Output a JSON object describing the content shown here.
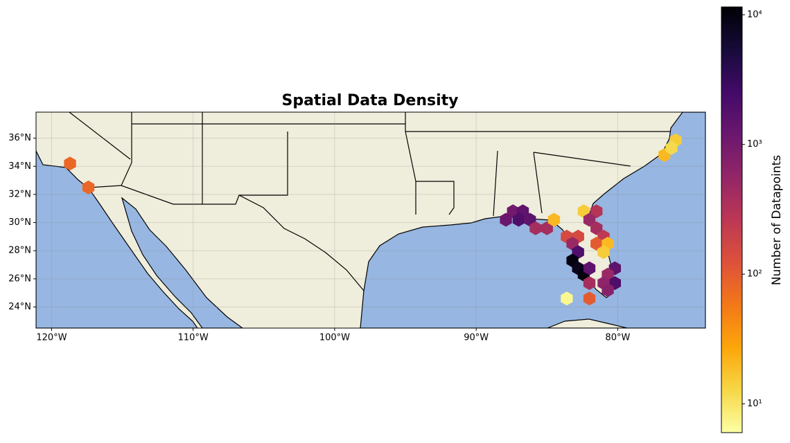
{
  "chart_data": {
    "type": "hexbin",
    "title": "Spatial Data Density",
    "x": [
      -118.7,
      -117.4,
      -75.9,
      -76.7,
      -76.2,
      -87.4,
      -86.7,
      -87.9,
      -87.0,
      -86.2,
      -85.8,
      -85.0,
      -84.5,
      -82.4,
      -81.5,
      -82.0,
      -81.5,
      -81.0,
      -83.6,
      -82.8,
      -83.2,
      -81.5,
      -80.7,
      -81.0,
      -82.8,
      -83.2,
      -82.8,
      -82.4,
      -82.0,
      -80.2,
      -80.7,
      -80.2,
      -82.0,
      -81.0,
      -80.7,
      -83.6,
      -82.0
    ],
    "y": [
      34.2,
      32.5,
      35.85,
      34.8,
      35.3,
      30.8,
      30.8,
      30.2,
      30.2,
      30.2,
      29.6,
      29.6,
      30.2,
      30.8,
      30.8,
      30.2,
      29.6,
      29.0,
      29.0,
      29.0,
      28.5,
      28.5,
      28.5,
      27.9,
      27.9,
      27.3,
      26.75,
      26.3,
      26.75,
      26.75,
      26.3,
      25.7,
      25.7,
      25.7,
      25.2,
      24.6,
      24.6
    ],
    "values": [
      80,
      80,
      15,
      20,
      12,
      1000,
      1500,
      1200,
      2000,
      1500,
      400,
      400,
      20,
      15,
      300,
      500,
      400,
      250,
      150,
      150,
      500,
      100,
      20,
      15,
      2000,
      10000,
      8000,
      10000,
      1500,
      1500,
      500,
      2000,
      400,
      600,
      700,
      7,
      100
    ],
    "xlim": [
      -121.1,
      -73.8
    ],
    "ylim": [
      22.5,
      37.85
    ],
    "xticks": [
      {
        "value": -120,
        "label": "120°W"
      },
      {
        "value": -110,
        "label": "110°W"
      },
      {
        "value": -100,
        "label": "100°W"
      },
      {
        "value": -90,
        "label": "90°W"
      },
      {
        "value": -80,
        "label": "80°W"
      }
    ],
    "yticks": [
      {
        "value": 24,
        "label": "24°N"
      },
      {
        "value": 26,
        "label": "26°N"
      },
      {
        "value": 28,
        "label": "28°N"
      },
      {
        "value": 30,
        "label": "30°N"
      },
      {
        "value": 32,
        "label": "32°N"
      },
      {
        "value": 34,
        "label": "34°N"
      },
      {
        "value": 36,
        "label": "36°N"
      }
    ],
    "grid": true,
    "colormap": "inferno_r",
    "color_log": true,
    "clim": [
      6,
      11500
    ],
    "cticks": [
      {
        "value": 10,
        "label": "10¹"
      },
      {
        "value": 100,
        "label": "10²"
      },
      {
        "value": 1000,
        "label": "10³"
      },
      {
        "value": 10000,
        "label": "10⁴"
      }
    ],
    "colorbar_label": "Number of Datapoints"
  }
}
